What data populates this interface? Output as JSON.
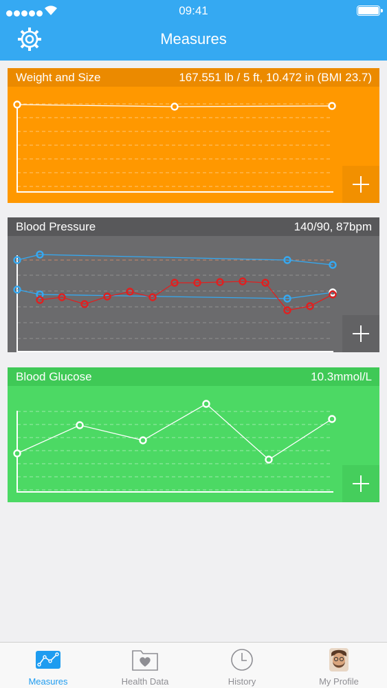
{
  "status_bar": {
    "time": "09:41"
  },
  "header": {
    "title": "Measures"
  },
  "cards": {
    "weight": {
      "label": "Weight and Size",
      "value": "167.551 lb / 5 ft, 10.472 in (BMI 23.7)",
      "color": "#ff9800",
      "series": [
        {
          "name": "",
          "values": [
            0.08,
            0.08,
            0.08
          ]
        }
      ]
    },
    "blood_pressure": {
      "label": "Blood Pressure",
      "value": "140/90, 87bpm",
      "color": "#6b6b6d"
    },
    "glucose": {
      "label": "Blood Glucose",
      "value": "10.3mmol/L",
      "color": "#4cd964"
    }
  },
  "tabs": [
    {
      "label": "Measures",
      "icon": "chart-line-icon",
      "active": true
    },
    {
      "label": "Health Data",
      "icon": "heart-folder-icon",
      "active": false
    },
    {
      "label": "History",
      "icon": "clock-icon",
      "active": false
    },
    {
      "label": "My Profile",
      "icon": "avatar",
      "active": false
    }
  ]
}
